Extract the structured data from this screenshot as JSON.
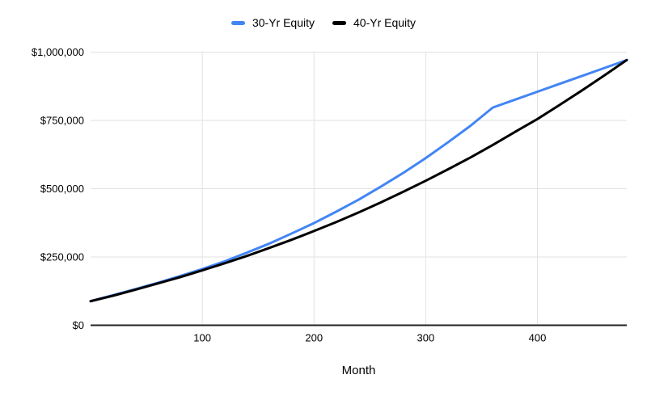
{
  "chart_data": {
    "type": "line",
    "title": "",
    "xlabel": "Month",
    "ylabel": "",
    "xlim": [
      0,
      480
    ],
    "ylim": [
      0,
      1000000
    ],
    "grid": true,
    "legend_position": "top-center",
    "background_color": "#ffffff",
    "gridline_color": "#e2e2e2",
    "axis_line_color": "#222222",
    "text_color": "#000000",
    "x_tick_values": [
      100,
      200,
      300,
      400
    ],
    "x_tick_labels": [
      "100",
      "200",
      "300",
      "400"
    ],
    "y_tick_values": [
      0,
      250000,
      500000,
      750000,
      1000000
    ],
    "y_tick_labels": [
      "$0",
      "$250,000",
      "$500,000",
      "$750,000",
      "$1,000,000"
    ],
    "x": [
      0,
      20,
      40,
      60,
      80,
      100,
      120,
      140,
      160,
      180,
      200,
      220,
      240,
      260,
      280,
      300,
      320,
      340,
      360,
      380,
      400,
      420,
      440,
      460,
      480
    ],
    "series": [
      {
        "name": "30-Yr Equity",
        "color": "#4285f4",
        "values": [
          88000,
          110000,
          132000,
          155000,
          180000,
          206000,
          234000,
          266000,
          299000,
          336000,
          374000,
          416000,
          460000,
          508000,
          558000,
          612000,
          670000,
          730000,
          797000,
          826000,
          855000,
          884000,
          913000,
          942000,
          971000
        ]
      },
      {
        "name": "40-Yr Equity",
        "color": "#000000",
        "values": [
          88000,
          108000,
          130000,
          153000,
          176000,
          201000,
          227000,
          254000,
          283000,
          313000,
          345000,
          378000,
          413000,
          450000,
          489000,
          529000,
          571000,
          614000,
          660000,
          708000,
          755000,
          807000,
          860000,
          915000,
          971000
        ]
      }
    ]
  }
}
